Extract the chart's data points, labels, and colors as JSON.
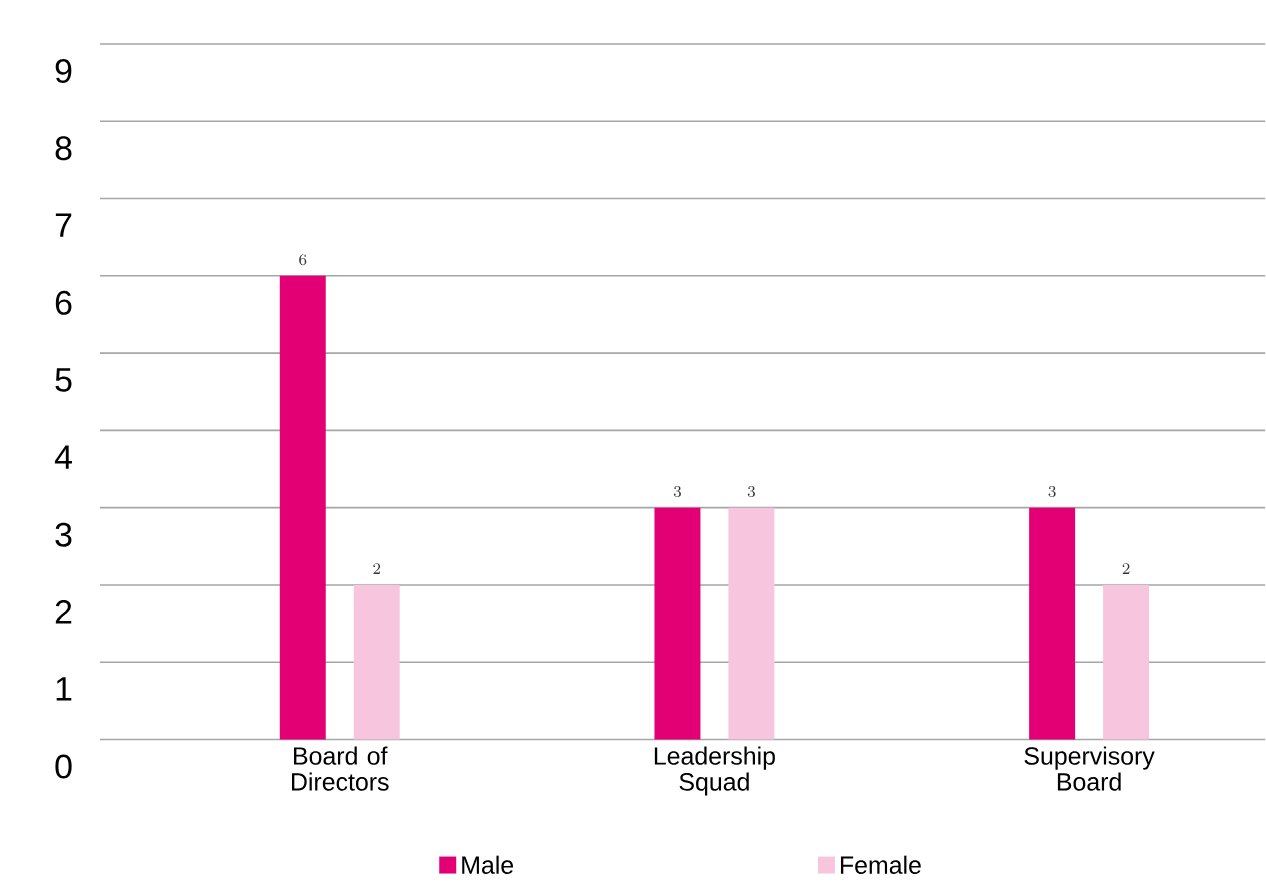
{
  "chart_data": {
    "type": "bar",
    "categories": [
      "Board of Directors",
      "Leadership Squad",
      "Supervisory Board"
    ],
    "series": [
      {
        "name": "Male",
        "color": "#e20074",
        "values": [
          6,
          3,
          3
        ]
      },
      {
        "name": "Female",
        "color": "#f7c6de",
        "values": [
          2,
          3,
          2
        ]
      }
    ],
    "ylim": [
      0,
      9
    ],
    "yticks": [
      0,
      1,
      2,
      3,
      4,
      5,
      6,
      7,
      8,
      9
    ],
    "grid": "y",
    "legend": "bottom",
    "data_labels": true
  }
}
